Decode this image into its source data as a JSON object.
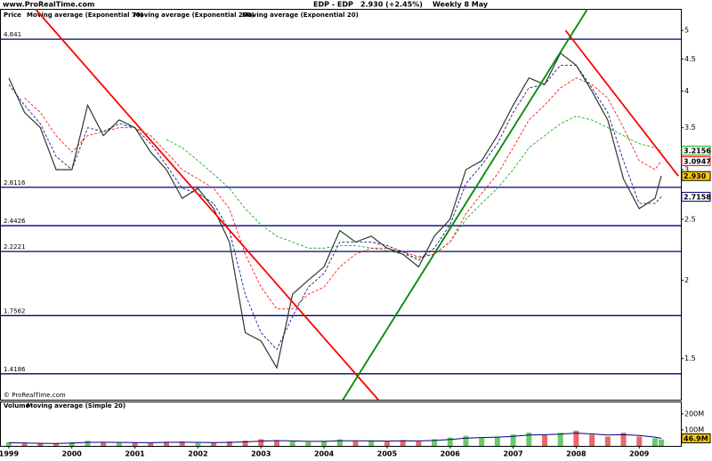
{
  "chart_data": {
    "type": "line",
    "source": "www.ProRealTime.com",
    "copyright": "© ProRealTime.com",
    "title": "EDP - EDP",
    "quote": "2.930 (+2.45%)",
    "period": "Weekly  8 May",
    "log_scale": true,
    "x": [
      1999.0,
      1999.25,
      1999.5,
      1999.75,
      2000.0,
      2000.25,
      2000.5,
      2000.75,
      2001.0,
      2001.25,
      2001.5,
      2001.75,
      2002.0,
      2002.25,
      2002.5,
      2002.75,
      2003.0,
      2003.25,
      2003.5,
      2003.75,
      2004.0,
      2004.25,
      2004.5,
      2004.75,
      2005.0,
      2005.25,
      2005.5,
      2005.75,
      2006.0,
      2006.25,
      2006.5,
      2006.75,
      2007.0,
      2007.25,
      2007.5,
      2007.75,
      2008.0,
      2008.25,
      2008.5,
      2008.75,
      2009.0,
      2009.25,
      2009.35
    ],
    "xlim": [
      1998.86,
      2009.66
    ],
    "xticks": [
      1999,
      2000,
      2001,
      2002,
      2003,
      2004,
      2005,
      2006,
      2007,
      2008,
      2009
    ],
    "ylim": [
      1.29,
      5.41
    ],
    "yticks": [
      1.5,
      2,
      2.5,
      3,
      3.5,
      4,
      4.5,
      5
    ],
    "series": [
      {
        "name": "Price",
        "color": "#2b3a2b",
        "last_label": "2.930",
        "values": [
          4.2,
          3.7,
          3.5,
          3.0,
          3.0,
          3.8,
          3.4,
          3.6,
          3.5,
          3.2,
          3.0,
          2.7,
          2.8,
          2.6,
          2.3,
          1.65,
          1.6,
          1.45,
          1.9,
          2.0,
          2.1,
          2.4,
          2.3,
          2.35,
          2.25,
          2.2,
          2.1,
          2.35,
          2.5,
          3.0,
          3.1,
          3.4,
          3.8,
          4.2,
          4.1,
          4.6,
          4.4,
          4.0,
          3.6,
          2.9,
          2.6,
          2.7,
          2.93
        ]
      },
      {
        "name": "Moving average (Exponential 70)",
        "color": "#ff0000",
        "values": [
          null,
          3.9,
          3.7,
          3.4,
          3.2,
          3.4,
          3.45,
          3.5,
          3.5,
          3.4,
          3.2,
          3.0,
          2.9,
          2.8,
          2.6,
          2.2,
          1.95,
          1.8,
          1.8,
          1.9,
          1.95,
          2.1,
          2.2,
          2.25,
          2.25,
          2.22,
          2.18,
          2.2,
          2.3,
          2.55,
          2.75,
          2.95,
          3.25,
          3.6,
          3.8,
          4.05,
          4.2,
          4.1,
          3.9,
          3.5,
          3.1,
          3.0,
          3.0947
        ]
      },
      {
        "name": "Moving average (Exponential 200)",
        "color": "#00aa00",
        "values": [
          null,
          null,
          null,
          null,
          null,
          null,
          null,
          null,
          null,
          null,
          3.35,
          3.25,
          3.1,
          2.95,
          2.8,
          2.6,
          2.45,
          2.35,
          2.3,
          2.25,
          2.25,
          2.27,
          2.27,
          2.25,
          2.23,
          2.2,
          2.17,
          2.2,
          2.3,
          2.5,
          2.65,
          2.8,
          3.0,
          3.25,
          3.4,
          3.55,
          3.65,
          3.6,
          3.5,
          3.4,
          3.3,
          3.25,
          3.2156
        ]
      },
      {
        "name": "Moving average (Exponential 20)",
        "color": "#000080",
        "values": [
          4.1,
          3.8,
          3.55,
          3.15,
          3.0,
          3.5,
          3.45,
          3.55,
          3.5,
          3.3,
          3.05,
          2.8,
          2.75,
          2.65,
          2.4,
          1.9,
          1.65,
          1.55,
          1.75,
          1.95,
          2.05,
          2.3,
          2.3,
          2.3,
          2.27,
          2.22,
          2.15,
          2.25,
          2.45,
          2.85,
          3.05,
          3.3,
          3.7,
          4.05,
          4.1,
          4.4,
          4.4,
          4.05,
          3.7,
          3.1,
          2.65,
          2.65,
          2.7158
        ]
      }
    ],
    "levels": [
      4.841,
      2.8116,
      2.4426,
      2.2221,
      1.7562,
      1.4186
    ],
    "level_color": "#000080",
    "trend_lines": [
      {
        "color": "#ff0000",
        "x": [
          1999.42,
          2004.86
        ],
        "y": [
          5.41,
          1.29
        ]
      },
      {
        "color": "#ff0000",
        "x": [
          2007.83,
          2009.62
        ],
        "y": [
          5.0,
          2.93
        ]
      },
      {
        "color": "#008800",
        "x": [
          2004.3,
          2008.18
        ],
        "y": [
          1.29,
          5.41
        ]
      }
    ],
    "volume": {
      "name": "Volume",
      "up_color": "#66cc66",
      "down_color": "#ee6666",
      "ylim": [
        0,
        255
      ],
      "yticks": [
        {
          "value": 100,
          "label": "100M"
        },
        {
          "value": 200,
          "label": "200M"
        }
      ],
      "values": [
        22,
        15,
        14,
        16,
        24,
        32,
        20,
        19,
        22,
        18,
        26,
        27,
        18,
        21,
        27,
        33,
        42,
        34,
        28,
        24,
        31,
        41,
        29,
        31,
        28,
        36,
        29,
        42,
        52,
        63,
        49,
        58,
        72,
        83,
        68,
        82,
        95,
        70,
        58,
        82,
        58,
        48,
        40
      ],
      "ma": {
        "name": "Moving average (Simple 20)",
        "color": "#000080",
        "last_label": "46.9M",
        "values": [
          20,
          18,
          16,
          15,
          17,
          22,
          23,
          22,
          21,
          20,
          22,
          23,
          22,
          21,
          22,
          25,
          30,
          33,
          31,
          28,
          28,
          32,
          32,
          31,
          30,
          32,
          31,
          34,
          40,
          48,
          52,
          55,
          60,
          68,
          70,
          74,
          80,
          75,
          68,
          70,
          65,
          55,
          46.9
        ]
      }
    }
  }
}
